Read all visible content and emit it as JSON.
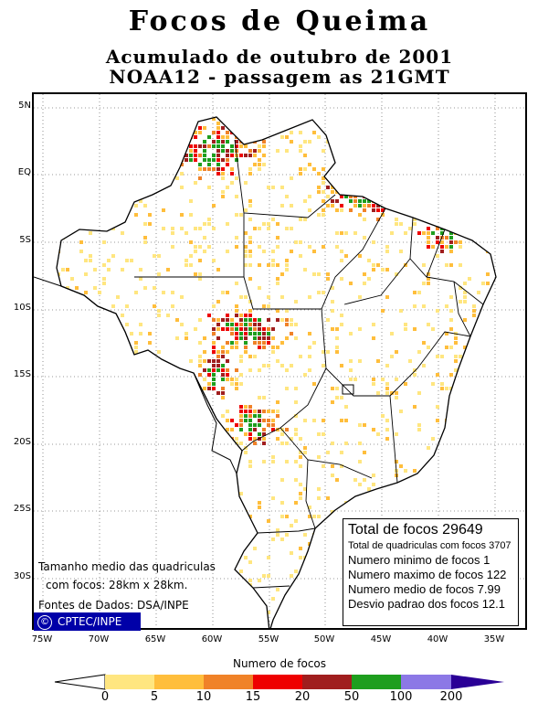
{
  "header": {
    "title": "Focos de Queima",
    "subtitle1": "Acumulado de outubro de 2001",
    "subtitle2": "NOAA12 - passagem as 21GMT"
  },
  "map": {
    "lat_labels": [
      "5N",
      "EQ",
      "5S",
      "10S",
      "15S",
      "20S",
      "25S",
      "30S"
    ],
    "lon_labels": [
      "75W",
      "70W",
      "65W",
      "60W",
      "55W",
      "50W",
      "45W",
      "40W",
      "35W"
    ],
    "notes": {
      "line1": "Tamanho medio das quadriculas",
      "line2": "com focos: 28km x 28km.",
      "line3": "Fontes de Dados: DSA/INPE"
    },
    "brand": {
      "symbol": "©",
      "label": "CPTEC/INPE"
    }
  },
  "stats": {
    "total": "Total de focos 29649",
    "cells": "Total de quadriculas com focos 3707",
    "min": "Numero minimo de focos 1",
    "max": "Numero maximo de focos 122",
    "mean": "Numero medio de focos 7.99",
    "std": "Desvio padrao dos focos 12.1"
  },
  "legend": {
    "title": "Numero de focos",
    "ticks": [
      "0",
      "5",
      "10",
      "15",
      "20",
      "50",
      "100",
      "200"
    ],
    "colors": [
      "#ffe680",
      "#ffbe3c",
      "#f08228",
      "#ee0000",
      "#a01e1e",
      "#1e9e1e",
      "#8c78e6",
      "#2a0096"
    ],
    "left_cap_color": "#ffffff"
  }
}
